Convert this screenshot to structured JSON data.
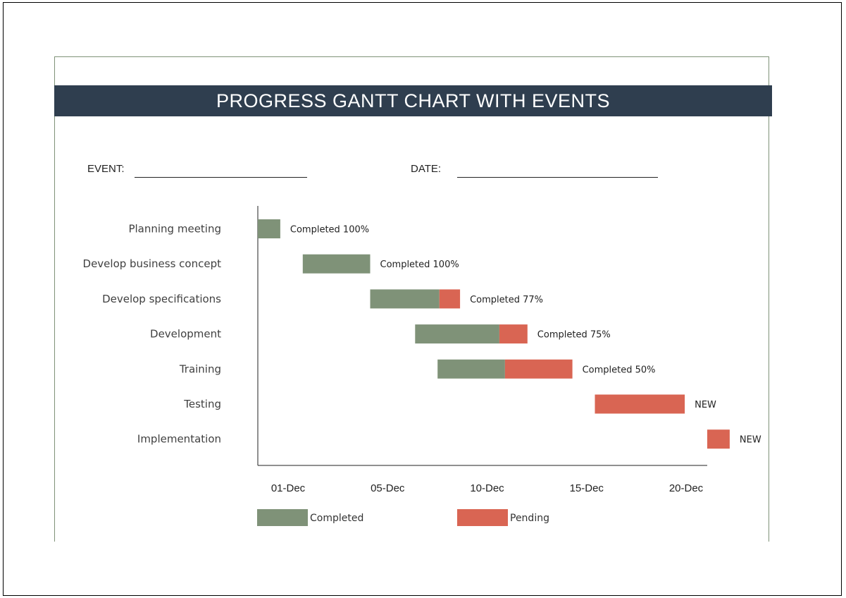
{
  "header": {
    "title": "PROGRESS GANTT CHART WITH EVENTS"
  },
  "form": {
    "event_label": "EVENT:",
    "event_value": "",
    "date_label": "DATE:",
    "date_value": ""
  },
  "colors": {
    "completed": "#7f9278",
    "pending": "#d96553",
    "banner": "#2f3e4f",
    "axis": "#222222"
  },
  "chart_data": {
    "type": "bar",
    "subtype": "gantt",
    "title": "",
    "xlabel": "",
    "ylabel": "",
    "x_axis": {
      "unit": "date",
      "min": "2023-11-30",
      "max": "2023-12-20",
      "ticks": [
        "01-Dec",
        "05-Dec",
        "10-Dec",
        "15-Dec",
        "20-Dec"
      ]
    },
    "grid": false,
    "legend_position": "bottom",
    "series": [
      {
        "name": "Completed",
        "color": "#7f9278"
      },
      {
        "name": "Pending",
        "color": "#d96553"
      }
    ],
    "tasks": [
      {
        "name": "Planning meeting",
        "start": "2023-11-30",
        "end": "2023-12-01",
        "completed_pct": 100,
        "label": "Completed 100%"
      },
      {
        "name": "Develop business concept",
        "start": "2023-12-02",
        "end": "2023-12-05",
        "completed_pct": 100,
        "label": "Completed 100%"
      },
      {
        "name": "Develop specifications",
        "start": "2023-12-05",
        "end": "2023-12-09",
        "completed_pct": 77,
        "label": "Completed 77%"
      },
      {
        "name": "Development",
        "start": "2023-12-07",
        "end": "2023-12-12",
        "completed_pct": 75,
        "label": "Completed 75%"
      },
      {
        "name": "Training",
        "start": "2023-12-08",
        "end": "2023-12-14",
        "completed_pct": 50,
        "label": "Completed 50%"
      },
      {
        "name": "Testing",
        "start": "2023-12-15",
        "end": "2023-12-19",
        "completed_pct": 0,
        "label": "NEW"
      },
      {
        "name": "Implementation",
        "start": "2023-12-20",
        "end": "2023-12-21",
        "completed_pct": 0,
        "label": "NEW"
      }
    ],
    "legend": [
      "Completed",
      "Pending"
    ]
  }
}
